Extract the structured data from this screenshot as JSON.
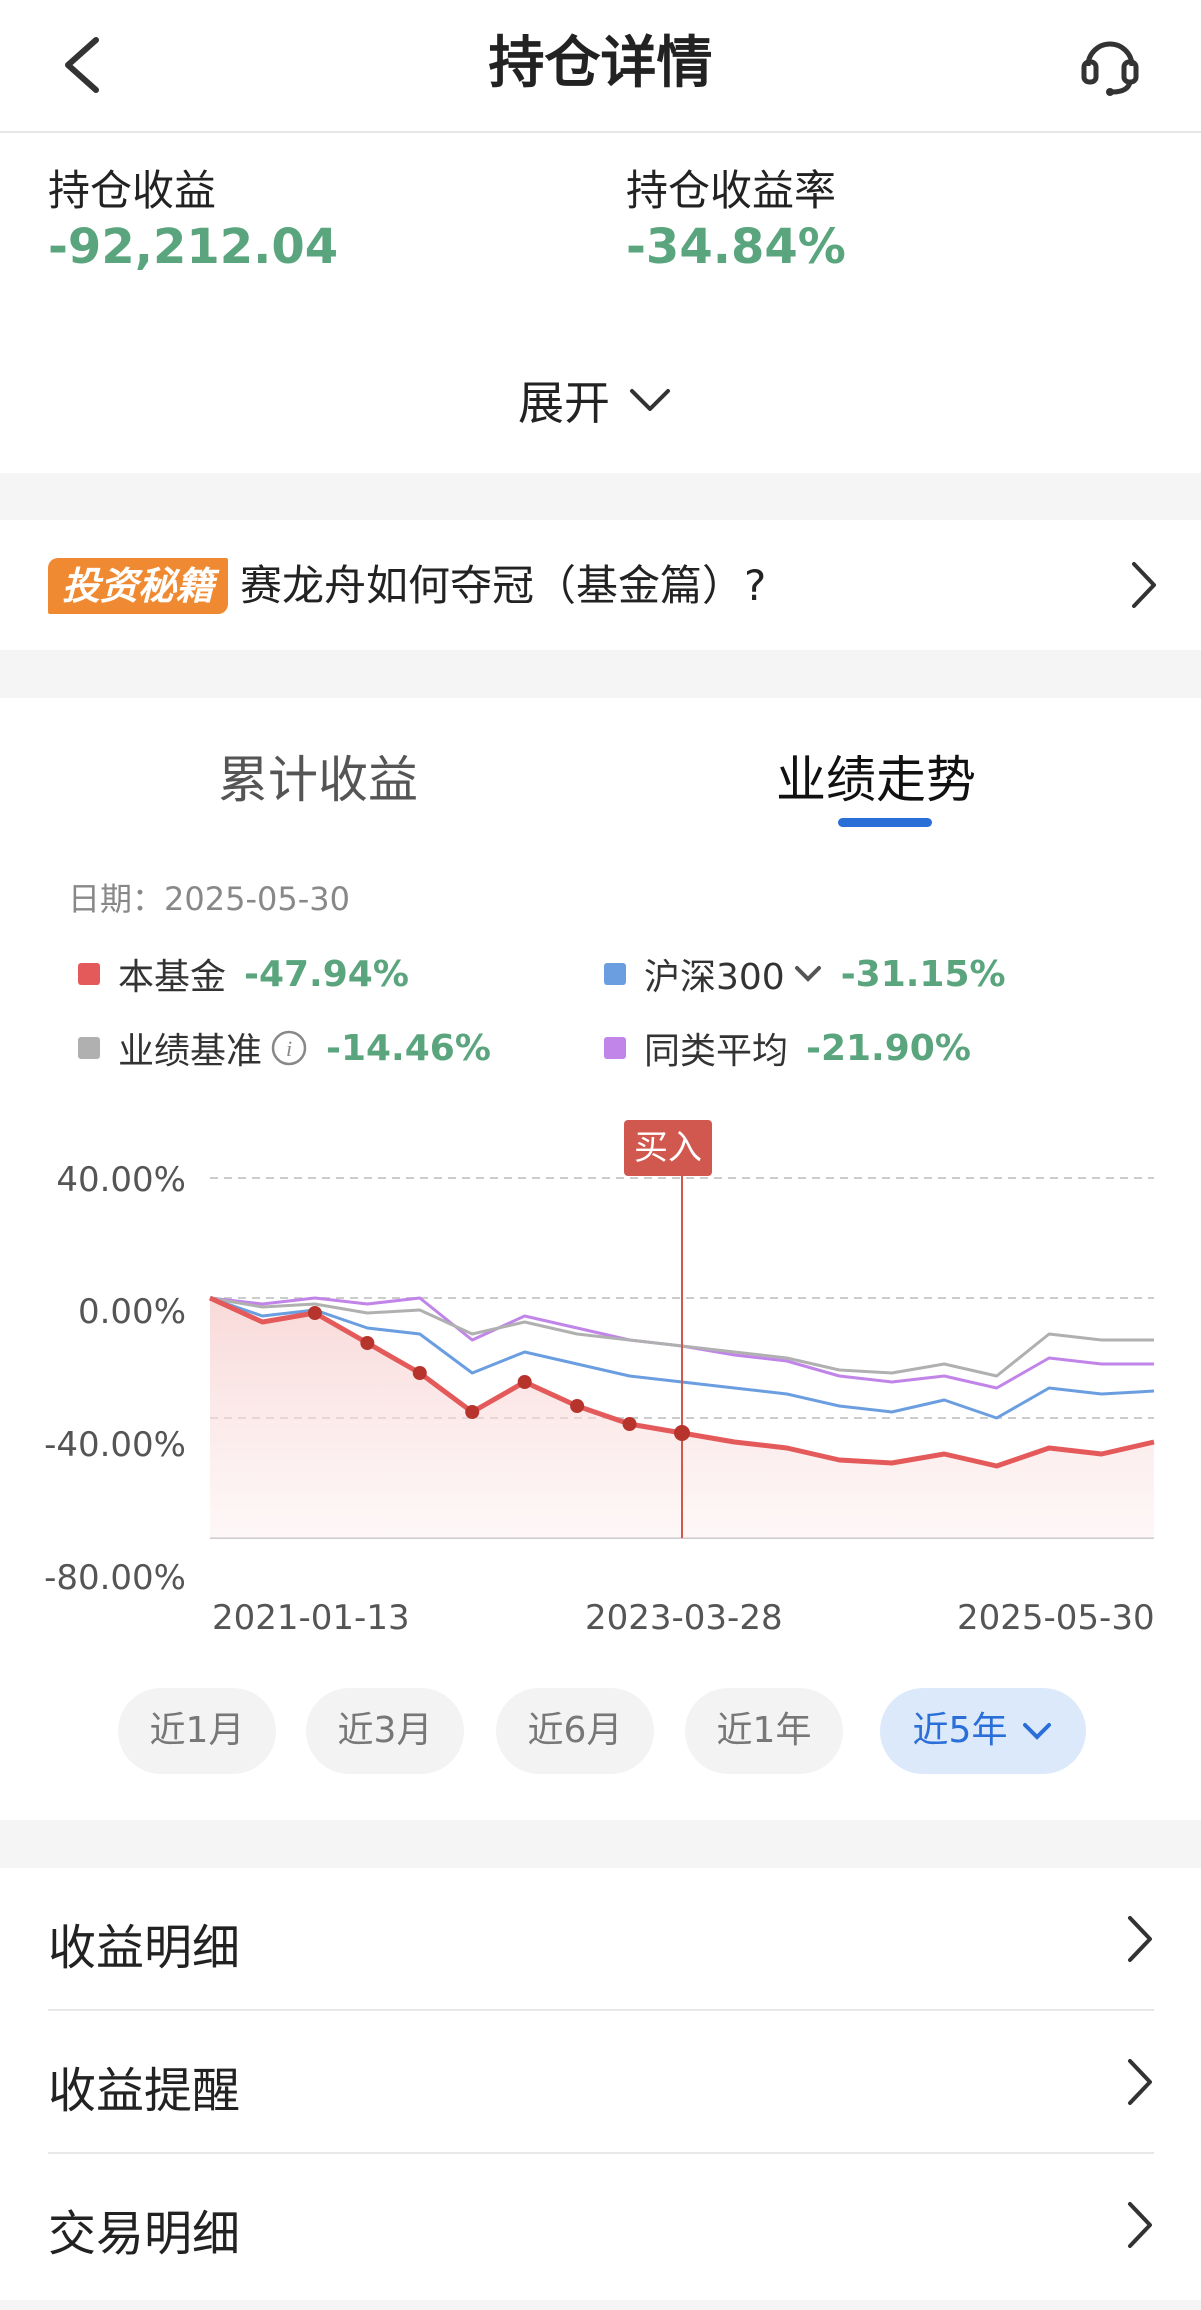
{
  "header": {
    "title": "持仓详情"
  },
  "summary": {
    "profit_label": "持仓收益",
    "profit_value": "-92,212.04",
    "rate_label": "持仓收益率",
    "rate_value": "-34.84%",
    "expand_label": "展开"
  },
  "banner": {
    "tag": "投资秘籍",
    "text": "赛龙舟如何夺冠（基金篇）?"
  },
  "tabs": [
    {
      "label": "累计收益"
    },
    {
      "label": "业绩走势",
      "active": true
    }
  ],
  "chart_info": {
    "date_label": "日期：2025-05-30"
  },
  "legend": [
    {
      "name": "本基金",
      "value": "-47.94%",
      "color": "#e45a5a"
    },
    {
      "name": "沪深300",
      "value": "-31.15%",
      "color": "#6b9ee0"
    },
    {
      "name": "业绩基准",
      "value": "-14.46%",
      "color": "#b0b0b0"
    },
    {
      "name": "同类平均",
      "value": "-21.90%",
      "color": "#c184e8"
    }
  ],
  "buy_marker": {
    "label": "买入",
    "date": "2023-03-28"
  },
  "chart_data": {
    "type": "line",
    "x": [
      "2021-01-13",
      "2021-03",
      "2021-06",
      "2021-09",
      "2021-12",
      "2022-03",
      "2022-06",
      "2022-09",
      "2022-12",
      "2023-03-28",
      "2023-06",
      "2023-09",
      "2023-12",
      "2024-03",
      "2024-06",
      "2024-09",
      "2024-12",
      "2025-03",
      "2025-05-30"
    ],
    "x_tick_labels": [
      "2021-01-13",
      "2023-03-28",
      "2025-05-30"
    ],
    "y_tick_labels": [
      "40.00%",
      "0.00%",
      "-40.00%",
      "-80.00%"
    ],
    "ylim": [
      -80,
      40
    ],
    "grid": true,
    "series": [
      {
        "name": "本基金",
        "color": "#e45a5a",
        "values": [
          0,
          -8,
          -5,
          -15,
          -25,
          -38,
          -28,
          -36,
          -42,
          -45,
          -48,
          -50,
          -54,
          -55,
          -52,
          -56,
          -50,
          -52,
          -48
        ]
      },
      {
        "name": "沪深300",
        "color": "#6b9ee0",
        "values": [
          0,
          -6,
          -4,
          -10,
          -12,
          -25,
          -18,
          -22,
          -26,
          -28,
          -30,
          -32,
          -36,
          -38,
          -34,
          -40,
          -30,
          -32,
          -31
        ]
      },
      {
        "name": "业绩基准",
        "color": "#b0b0b0",
        "values": [
          0,
          -3,
          -2,
          -5,
          -4,
          -12,
          -8,
          -12,
          -14,
          -16,
          -18,
          -20,
          -24,
          -25,
          -22,
          -26,
          -12,
          -14,
          -14
        ]
      },
      {
        "name": "同类平均",
        "color": "#c184e8",
        "values": [
          0,
          -2,
          0,
          -2,
          0,
          -14,
          -6,
          -10,
          -14,
          -16,
          -19,
          -21,
          -26,
          -28,
          -26,
          -30,
          -20,
          -22,
          -22
        ]
      }
    ]
  },
  "ranges": [
    {
      "label": "近1月"
    },
    {
      "label": "近3月"
    },
    {
      "label": "近6月"
    },
    {
      "label": "近1年"
    },
    {
      "label": "近5年",
      "active": true
    }
  ],
  "menu": [
    {
      "label": "收益明细"
    },
    {
      "label": "收益提醒"
    },
    {
      "label": "交易明细"
    }
  ]
}
